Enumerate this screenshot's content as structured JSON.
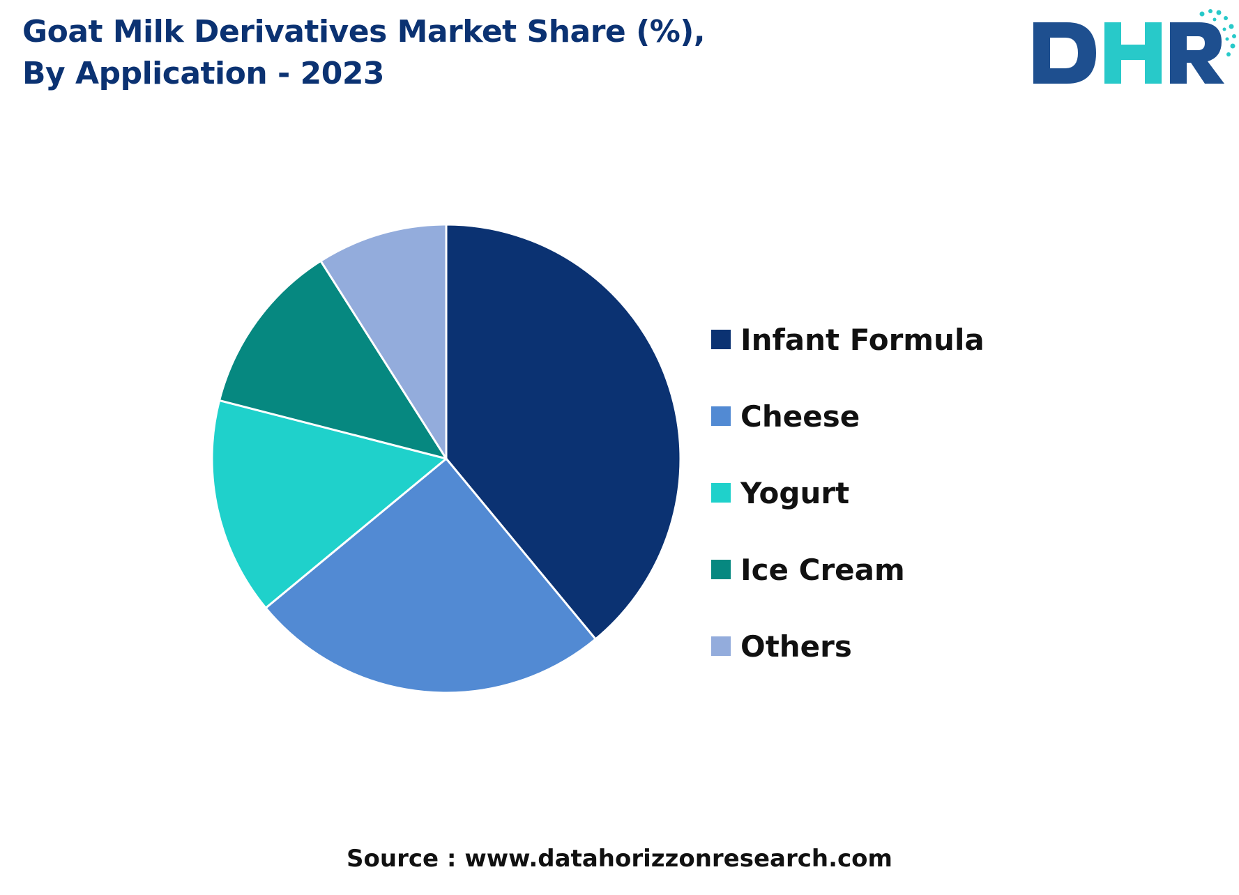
{
  "title_lines": [
    "Goat Milk Derivatives Market Share (%),",
    "By Application - 2023"
  ],
  "logo": {
    "text": "DHR",
    "colors": [
      "#1e4f8f",
      "#28c9c9"
    ]
  },
  "chart_data": {
    "type": "pie",
    "categories": [
      "Infant Formula",
      "Cheese",
      "Yogurt",
      "Ice Cream",
      "Others"
    ],
    "values": [
      39,
      25,
      15,
      12,
      9
    ],
    "colors": [
      "#0b3272",
      "#528ad3",
      "#1fd1cb",
      "#068880",
      "#93acdc"
    ],
    "start_angle_deg": 0,
    "direction": "clockwise",
    "legend_position": "right"
  },
  "source": "Source : www.datahorizzonresearch.com"
}
